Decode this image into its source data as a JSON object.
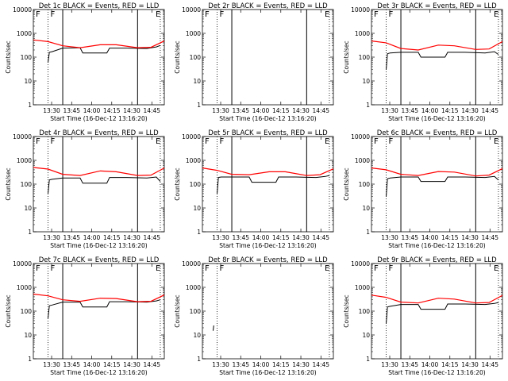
{
  "figure": {
    "xlabel": "Start Time (16-Dec-12 13:16:20)",
    "ylabel": "Counts/sec",
    "x_tick_labels": [
      "13:30",
      "13:45",
      "14:00",
      "14:15",
      "14:30",
      "14:45"
    ],
    "y_tick_labels": [
      "1",
      "10",
      "100",
      "1000",
      "10000"
    ],
    "marker_start": "F",
    "marker_end": "E",
    "colors": {
      "events": "#000000",
      "lld": "#ff0000",
      "background": "#ffffff"
    }
  },
  "chart_data": [
    {
      "type": "line",
      "title": "Det 1c BLACK = Events, RED = LLD",
      "xlim_minutes_after_13:16:20": [
        0,
        98
      ],
      "yscale": "log",
      "ylim": [
        1,
        10000
      ],
      "vlines_solid": [
        22,
        78
      ],
      "vlines_dotted": [
        11,
        95
      ],
      "show_F": true,
      "show_E": true,
      "series": [
        {
          "name": "Events",
          "color": "#000000",
          "points": [
            [
              11,
              60
            ],
            [
              12,
              160
            ],
            [
              14,
              170
            ],
            [
              22,
              240
            ],
            [
              35,
              250
            ],
            [
              37,
              150
            ],
            [
              55,
              150
            ],
            [
              57,
              240
            ],
            [
              70,
              240
            ],
            [
              85,
              230
            ],
            [
              92,
              270
            ],
            [
              95,
              310
            ]
          ]
        },
        {
          "name": "LLD",
          "color": "#ff0000",
          "points": [
            [
              0,
              530
            ],
            [
              11,
              450
            ],
            [
              22,
              300
            ],
            [
              35,
              250
            ],
            [
              50,
              330
            ],
            [
              62,
              330
            ],
            [
              78,
              250
            ],
            [
              88,
              260
            ],
            [
              98,
              480
            ]
          ]
        }
      ]
    },
    {
      "type": "line",
      "title": "Det 2r BLACK = Events, RED = LLD",
      "xlim_minutes_after_13:16:20": [
        0,
        98
      ],
      "yscale": "log",
      "ylim": [
        1,
        10000
      ],
      "vlines_solid": [
        22,
        78
      ],
      "vlines_dotted": [
        11,
        95
      ],
      "show_F": true,
      "show_E": true,
      "series": []
    },
    {
      "type": "line",
      "title": "Det 3r BLACK = Events, RED = LLD",
      "xlim_minutes_after_13:16:20": [
        0,
        98
      ],
      "yscale": "log",
      "ylim": [
        1,
        10000
      ],
      "vlines_solid": [
        22,
        78
      ],
      "vlines_dotted": [
        11,
        95
      ],
      "show_F": true,
      "show_E": true,
      "series": [
        {
          "name": "Events",
          "color": "#000000",
          "points": [
            [
              11,
              30
            ],
            [
              12,
              140
            ],
            [
              14,
              150
            ],
            [
              22,
              160
            ],
            [
              35,
              160
            ],
            [
              37,
              100
            ],
            [
              55,
              100
            ],
            [
              57,
              160
            ],
            [
              70,
              160
            ],
            [
              85,
              150
            ],
            [
              92,
              170
            ],
            [
              95,
              130
            ]
          ]
        },
        {
          "name": "LLD",
          "color": "#ff0000",
          "points": [
            [
              0,
              480
            ],
            [
              11,
              400
            ],
            [
              22,
              230
            ],
            [
              35,
              200
            ],
            [
              50,
              320
            ],
            [
              62,
              300
            ],
            [
              78,
              210
            ],
            [
              88,
              220
            ],
            [
              98,
              450
            ]
          ]
        }
      ]
    },
    {
      "type": "line",
      "title": "Det 4r BLACK = Events, RED = LLD",
      "xlim_minutes_after_13:16:20": [
        0,
        98
      ],
      "yscale": "log",
      "ylim": [
        1,
        10000
      ],
      "vlines_solid": [
        22,
        78
      ],
      "vlines_dotted": [
        11,
        95
      ],
      "show_F": true,
      "show_E": true,
      "series": [
        {
          "name": "Events",
          "color": "#000000",
          "points": [
            [
              11,
              40
            ],
            [
              12,
              150
            ],
            [
              14,
              160
            ],
            [
              22,
              180
            ],
            [
              35,
              180
            ],
            [
              37,
              110
            ],
            [
              55,
              110
            ],
            [
              57,
              190
            ],
            [
              70,
              190
            ],
            [
              85,
              180
            ],
            [
              92,
              200
            ],
            [
              95,
              130
            ]
          ]
        },
        {
          "name": "LLD",
          "color": "#ff0000",
          "points": [
            [
              0,
              500
            ],
            [
              11,
              430
            ],
            [
              22,
              260
            ],
            [
              35,
              230
            ],
            [
              50,
              360
            ],
            [
              62,
              330
            ],
            [
              78,
              230
            ],
            [
              88,
              240
            ],
            [
              98,
              480
            ]
          ]
        }
      ]
    },
    {
      "type": "line",
      "title": "Det 5r BLACK = Events, RED = LLD",
      "xlim_minutes_after_13:16:20": [
        0,
        98
      ],
      "yscale": "log",
      "ylim": [
        1,
        10000
      ],
      "vlines_solid": [
        22,
        78
      ],
      "vlines_dotted": [
        11,
        95
      ],
      "show_F": true,
      "show_E": true,
      "series": [
        {
          "name": "Events",
          "color": "#000000",
          "points": [
            [
              11,
              40
            ],
            [
              12,
              190
            ],
            [
              14,
              200
            ],
            [
              22,
              200
            ],
            [
              35,
              200
            ],
            [
              37,
              120
            ],
            [
              55,
              120
            ],
            [
              57,
              200
            ],
            [
              70,
              200
            ],
            [
              85,
              190
            ],
            [
              92,
              210
            ],
            [
              95,
              230
            ]
          ]
        },
        {
          "name": "LLD",
          "color": "#ff0000",
          "points": [
            [
              0,
              480
            ],
            [
              11,
              380
            ],
            [
              22,
              260
            ],
            [
              35,
              250
            ],
            [
              50,
              330
            ],
            [
              62,
              330
            ],
            [
              78,
              230
            ],
            [
              88,
              250
            ],
            [
              98,
              440
            ]
          ]
        }
      ]
    },
    {
      "type": "line",
      "title": "Det 6c BLACK = Events, RED = LLD",
      "xlim_minutes_after_13:16:20": [
        0,
        98
      ],
      "yscale": "log",
      "ylim": [
        1,
        10000
      ],
      "vlines_solid": [
        22,
        78
      ],
      "vlines_dotted": [
        11,
        95
      ],
      "show_F": true,
      "show_E": true,
      "series": [
        {
          "name": "Events",
          "color": "#000000",
          "points": [
            [
              11,
              30
            ],
            [
              12,
              170
            ],
            [
              14,
              180
            ],
            [
              22,
              200
            ],
            [
              35,
              200
            ],
            [
              37,
              130
            ],
            [
              55,
              130
            ],
            [
              57,
              200
            ],
            [
              70,
              200
            ],
            [
              85,
              190
            ],
            [
              92,
              210
            ],
            [
              95,
              150
            ]
          ]
        },
        {
          "name": "LLD",
          "color": "#ff0000",
          "points": [
            [
              0,
              480
            ],
            [
              11,
              400
            ],
            [
              22,
              260
            ],
            [
              35,
              230
            ],
            [
              50,
              340
            ],
            [
              62,
              320
            ],
            [
              78,
              220
            ],
            [
              88,
              240
            ],
            [
              98,
              450
            ]
          ]
        }
      ]
    },
    {
      "type": "line",
      "title": "Det 7c BLACK = Events, RED = LLD",
      "xlim_minutes_after_13:16:20": [
        0,
        98
      ],
      "yscale": "log",
      "ylim": [
        1,
        10000
      ],
      "vlines_solid": [
        22,
        78
      ],
      "vlines_dotted": [
        11,
        95
      ],
      "show_F": true,
      "show_E": true,
      "series": [
        {
          "name": "Events",
          "color": "#000000",
          "points": [
            [
              11,
              50
            ],
            [
              12,
              170
            ],
            [
              14,
              180
            ],
            [
              22,
              240
            ],
            [
              35,
              240
            ],
            [
              37,
              150
            ],
            [
              55,
              150
            ],
            [
              57,
              250
            ],
            [
              70,
              250
            ],
            [
              85,
              240
            ],
            [
              92,
              270
            ],
            [
              95,
              300
            ]
          ]
        },
        {
          "name": "LLD",
          "color": "#ff0000",
          "points": [
            [
              0,
              520
            ],
            [
              11,
              440
            ],
            [
              22,
              300
            ],
            [
              35,
              260
            ],
            [
              50,
              350
            ],
            [
              62,
              340
            ],
            [
              78,
              250
            ],
            [
              88,
              260
            ],
            [
              98,
              480
            ]
          ]
        }
      ]
    },
    {
      "type": "line",
      "title": "Det 8r BLACK = Events, RED = LLD",
      "xlim_minutes_after_13:16:20": [
        0,
        98
      ],
      "yscale": "log",
      "ylim": [
        1,
        10000
      ],
      "vlines_solid": [],
      "vlines_dotted": [
        11,
        95
      ],
      "show_F": true,
      "show_E": true,
      "series": [
        {
          "name": "Events",
          "color": "#000000",
          "points": [
            [
              8,
              15
            ],
            [
              8.5,
              25
            ]
          ]
        }
      ]
    },
    {
      "type": "line",
      "title": "Det 9r BLACK = Events, RED = LLD",
      "xlim_minutes_after_13:16:20": [
        0,
        98
      ],
      "yscale": "log",
      "ylim": [
        1,
        10000
      ],
      "vlines_solid": [
        22,
        78
      ],
      "vlines_dotted": [
        11,
        95
      ],
      "show_F": true,
      "show_E": true,
      "series": [
        {
          "name": "Events",
          "color": "#000000",
          "points": [
            [
              11,
              30
            ],
            [
              12,
              150
            ],
            [
              14,
              160
            ],
            [
              22,
              190
            ],
            [
              35,
              190
            ],
            [
              37,
              120
            ],
            [
              55,
              120
            ],
            [
              57,
              200
            ],
            [
              70,
              200
            ],
            [
              85,
              190
            ],
            [
              92,
              210
            ],
            [
              95,
              230
            ]
          ]
        },
        {
          "name": "LLD",
          "color": "#ff0000",
          "points": [
            [
              0,
              470
            ],
            [
              11,
              380
            ],
            [
              22,
              240
            ],
            [
              35,
              220
            ],
            [
              50,
              350
            ],
            [
              62,
              320
            ],
            [
              78,
              220
            ],
            [
              88,
              230
            ],
            [
              98,
              460
            ]
          ]
        }
      ]
    }
  ]
}
